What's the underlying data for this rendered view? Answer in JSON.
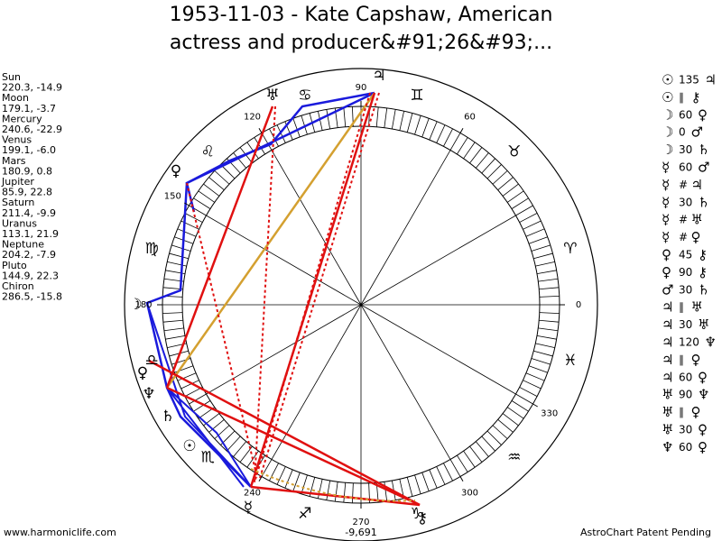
{
  "title": {
    "line1": "1953-11-03 - Kate Capshaw, American",
    "line2": "actress and producer&#91;26&#93;..."
  },
  "planets": [
    {
      "name": "Sun",
      "coords": "220.3, -14.9"
    },
    {
      "name": "Moon",
      "coords": "179.1, -3.7"
    },
    {
      "name": "Mercury",
      "coords": "240.6, -22.9"
    },
    {
      "name": "Venus",
      "coords": "199.1, -6.0"
    },
    {
      "name": "Mars",
      "coords": "180.9, 0.8"
    },
    {
      "name": "Jupiter",
      "coords": "85.9, 22.8"
    },
    {
      "name": "Saturn",
      "coords": "211.4, -9.9"
    },
    {
      "name": "Uranus",
      "coords": "113.1, 21.9"
    },
    {
      "name": "Neptune",
      "coords": "204.2, -7.9"
    },
    {
      "name": "Pluto",
      "coords": "144.9, 22.3"
    },
    {
      "name": "Chiron",
      "coords": "286.5, -15.8"
    }
  ],
  "aspects": [
    [
      "☉",
      "135",
      "♃"
    ],
    [
      "☉",
      "∥",
      "⚷"
    ],
    [
      "☽",
      "60",
      "♀"
    ],
    [
      "☽",
      "0",
      "♂"
    ],
    [
      "☽",
      "30",
      "♄"
    ],
    [
      "☿",
      "60",
      "♂"
    ],
    [
      "☿",
      "#",
      "♃"
    ],
    [
      "☿",
      "30",
      "♄"
    ],
    [
      "☿",
      "#",
      "♅"
    ],
    [
      "☿",
      "#",
      "♀"
    ],
    [
      "♀",
      "45",
      "⚷"
    ],
    [
      "♀",
      "90",
      "⚷"
    ],
    [
      "♂",
      "30",
      "♄"
    ],
    [
      "♃",
      "∥",
      "♅"
    ],
    [
      "♃",
      "30",
      "♅"
    ],
    [
      "♃",
      "120",
      "♆"
    ],
    [
      "♃",
      "∥",
      "♀"
    ],
    [
      "♃",
      "60",
      "♀"
    ],
    [
      "♅",
      "90",
      "♆"
    ],
    [
      "♅",
      "∥",
      "♀"
    ],
    [
      "♅",
      "30",
      "♀"
    ],
    [
      "♆",
      "60",
      "♀"
    ]
  ],
  "zodiac": [
    "♈",
    "♉",
    "♊",
    "♋",
    "♌",
    "♍",
    "♎",
    "♏",
    "♐",
    "♑",
    "♒",
    "♓"
  ],
  "degree_ticks": [
    0,
    60,
    90,
    120,
    150,
    180,
    240,
    270,
    300,
    330
  ],
  "wheel_glyphs": [
    "♃",
    "♅",
    "♀",
    "☽",
    "♀",
    "♆",
    "♄",
    "☉",
    "☿",
    "⚷"
  ],
  "bottom_value": "-9,691",
  "footer": {
    "left": "www.harmoniclife.com",
    "right": "AstroChart Patent Pending"
  }
}
